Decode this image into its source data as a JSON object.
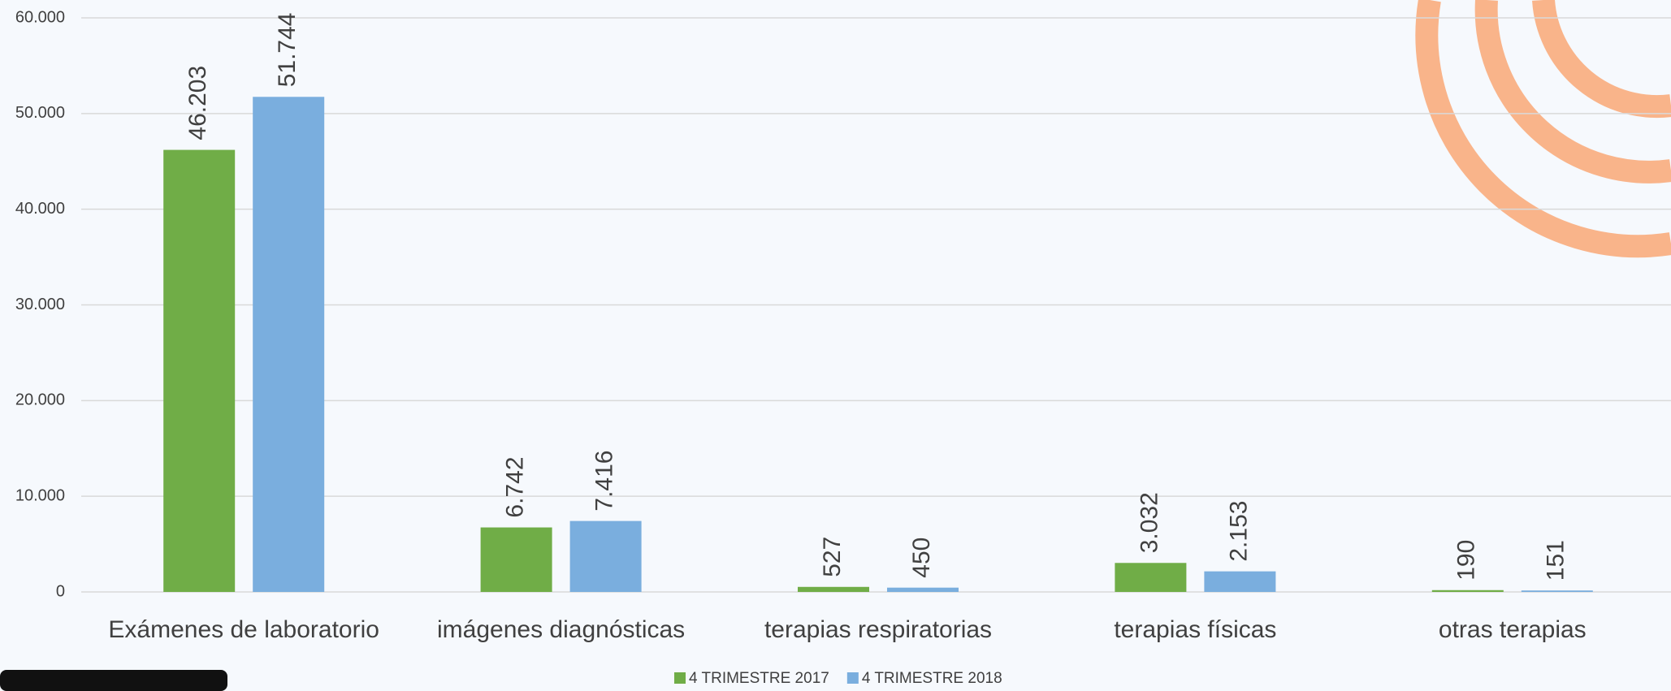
{
  "chart_data": {
    "type": "bar",
    "categories": [
      "Exámenes de laboratorio",
      "imágenes diagnósticas",
      "terapias respiratorias",
      "terapias físicas",
      "otras terapias"
    ],
    "series": [
      {
        "name": "4 TRIMESTRE 2017",
        "color": "#70ad47",
        "values": [
          46203,
          6742,
          527,
          3032,
          190
        ],
        "value_labels": [
          "46.203",
          "6.742",
          "527",
          "3.032",
          "190"
        ]
      },
      {
        "name": "4 TRIMESTRE 2018",
        "color": "#7aaede",
        "values": [
          51744,
          7416,
          450,
          2153,
          151
        ],
        "value_labels": [
          "51.744",
          "7.416",
          "450",
          "2.153",
          "151"
        ]
      }
    ],
    "ylim": [
      0,
      60000
    ],
    "yticks": [
      0,
      {
        "value": 10000,
        "label": "10.000"
      },
      {
        "value": 20000,
        "label": "20.000"
      },
      {
        "value": 30000,
        "label": "30.000"
      },
      {
        "value": 40000,
        "label": "40.000"
      },
      {
        "value": 50000,
        "label": "50.000"
      },
      {
        "value": 60000,
        "label": "60.000"
      }
    ],
    "grid": true,
    "legend": "bottom"
  }
}
